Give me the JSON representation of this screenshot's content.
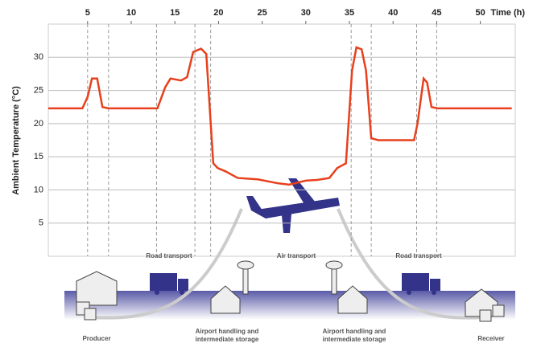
{
  "chart_data": {
    "type": "line",
    "x_label": "Time (h)",
    "y_label": "Ambient Temperature (°C)",
    "x": [
      0.5,
      4.4,
      5,
      5.5,
      6.1,
      6.7,
      7.4,
      13,
      13.9,
      14.5,
      15.7,
      16.4,
      17.1,
      18,
      18.6,
      19.4,
      19.9,
      20.8,
      22.2,
      24.5,
      26.8,
      28.1,
      30,
      31.3,
      32.7,
      33.6,
      34.6,
      35.3,
      35.8,
      36.4,
      36.9,
      37.5,
      38.3,
      42.4,
      42.8,
      43.5,
      43.9,
      44.4,
      45.1,
      53.6
    ],
    "series": [
      {
        "name": "Ambient temperature",
        "color": "#e8401c",
        "values": [
          22.3,
          22.3,
          24,
          26.8,
          26.8,
          22.5,
          22.3,
          22.3,
          25.5,
          26.8,
          26.5,
          27,
          30.8,
          31.3,
          30.5,
          14,
          13.3,
          12.8,
          11.8,
          11.6,
          11,
          10.8,
          11.4,
          11.5,
          11.8,
          13.3,
          14,
          28,
          31.5,
          31.2,
          28,
          17.8,
          17.5,
          17.5,
          20,
          26.8,
          26.2,
          22.5,
          22.3,
          22.3
        ]
      }
    ],
    "stage_boundaries": [
      5,
      7.4,
      12.9,
      17.3,
      19.1,
      35.2,
      37.5,
      42.7,
      45
    ],
    "xlim": [
      0.5,
      54
    ],
    "xticks": [
      5,
      10,
      15,
      20,
      25,
      30,
      35,
      40,
      45,
      50
    ],
    "ylim": [
      0,
      35
    ],
    "yticks": [
      5,
      10,
      15,
      20,
      25,
      30
    ],
    "grid": true,
    "transport_labels": [
      "Road transport",
      "Air transport",
      "Road transport"
    ],
    "site_labels": [
      "Producer",
      "Airport handling and intermediate storage",
      "Airport handling and intermediate storage",
      "Receiver"
    ]
  }
}
